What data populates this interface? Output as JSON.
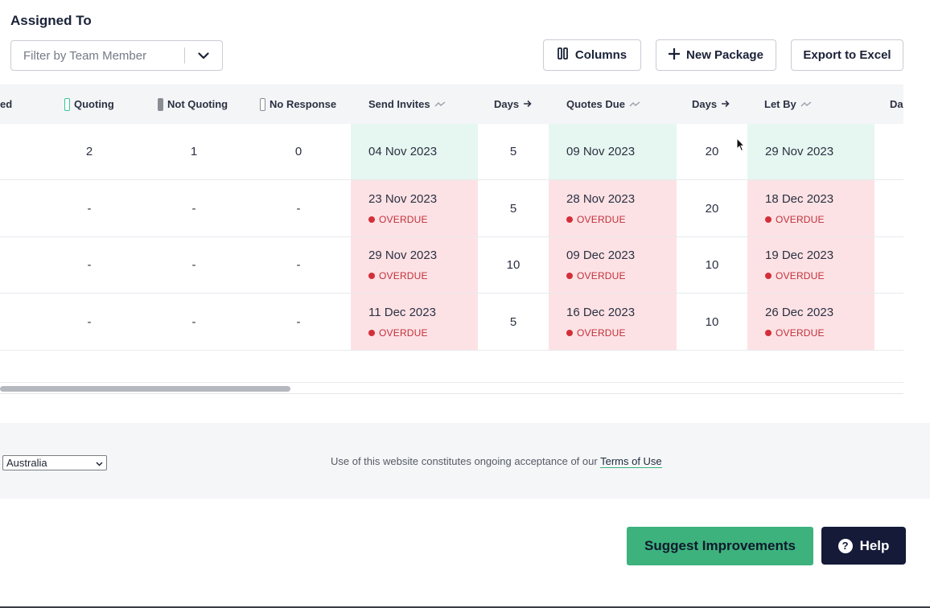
{
  "section": {
    "title": "Assigned To"
  },
  "filter": {
    "placeholder": "Filter by Team Member"
  },
  "toolbar": {
    "columns_label": "Columns",
    "new_package_label": "New Package",
    "export_label": "Export to Excel"
  },
  "table": {
    "headers": {
      "partial_left": "ed",
      "quoting": "Quoting",
      "not_quoting": "Not Quoting",
      "no_response": "No Response",
      "send_invites": "Send Invites",
      "days1": "Days",
      "quotes_due": "Quotes Due",
      "days2": "Days",
      "let_by": "Let By",
      "partial_right": "Da"
    },
    "legend_colors": {
      "quoting": "#3bc49a",
      "not_quoting": "#8a8d94",
      "no_response": "#ffffff"
    },
    "overdue_label": "OVERDUE",
    "rows": [
      {
        "quoting": "2",
        "not_quoting": "1",
        "no_response": "0",
        "send_invites": "04 Nov 2023",
        "days1": "5",
        "quotes_due": "09 Nov 2023",
        "days2": "20",
        "let_by": "29 Nov 2023",
        "overdue": false
      },
      {
        "quoting": "-",
        "not_quoting": "-",
        "no_response": "-",
        "send_invites": "23 Nov 2023",
        "days1": "5",
        "quotes_due": "28 Nov 2023",
        "days2": "20",
        "let_by": "18 Dec 2023",
        "overdue": true
      },
      {
        "quoting": "-",
        "not_quoting": "-",
        "no_response": "-",
        "send_invites": "29 Nov 2023",
        "days1": "10",
        "quotes_due": "09 Dec 2023",
        "days2": "10",
        "let_by": "19 Dec 2023",
        "overdue": true
      },
      {
        "quoting": "-",
        "not_quoting": "-",
        "no_response": "-",
        "send_invites": "11 Dec 2023",
        "days1": "5",
        "quotes_due": "16 Dec 2023",
        "days2": "10",
        "let_by": "26 Dec 2023",
        "overdue": true
      }
    ]
  },
  "footer": {
    "country_selected": "Australia",
    "text": "Use of this website constitutes ongoing acceptance of our",
    "terms_link": "Terms of Use"
  },
  "actions": {
    "suggest_label": "Suggest Improvements",
    "help_label": "Help"
  }
}
